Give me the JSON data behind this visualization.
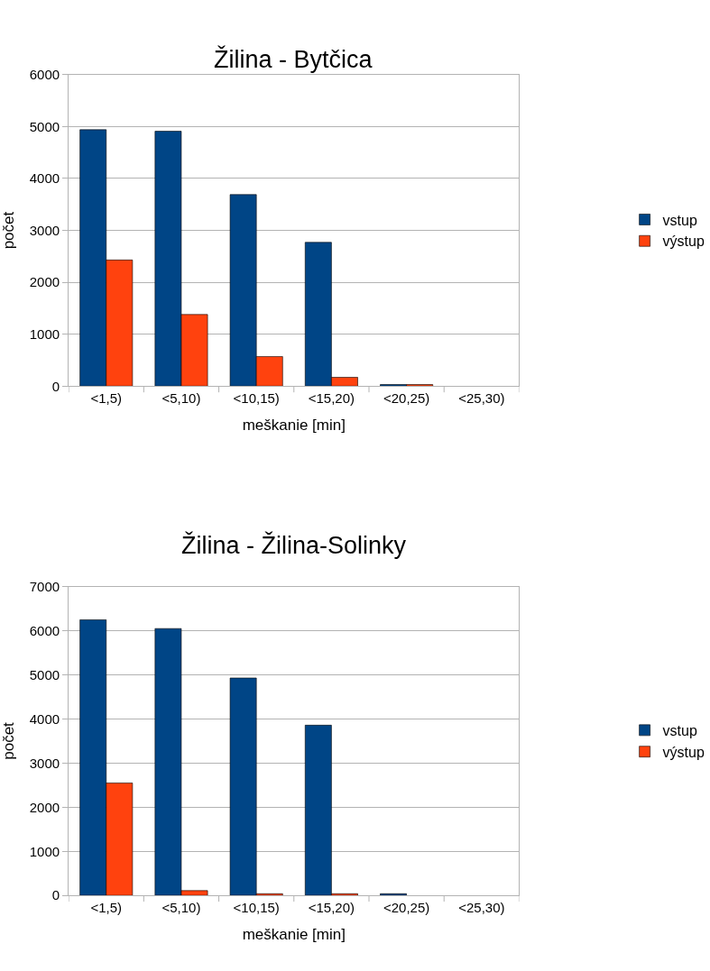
{
  "chart_data": [
    {
      "type": "bar",
      "title": "Žilina - Bytčica",
      "xlabel": "meškanie [min]",
      "ylabel": "počet",
      "categories": [
        "<1,5)",
        "<5,10)",
        "<10,15)",
        "<15,20)",
        "<20,25)",
        "<25,30)"
      ],
      "series": [
        {
          "name": "vstup",
          "color": "#004586",
          "values": [
            4940,
            4910,
            3690,
            2770,
            30,
            0
          ]
        },
        {
          "name": "výstup",
          "color": "#ff420e",
          "values": [
            2430,
            1380,
            570,
            170,
            30,
            0
          ]
        }
      ],
      "ylim": [
        0,
        6000
      ],
      "yticks": [
        0,
        1000,
        2000,
        3000,
        4000,
        5000,
        6000
      ],
      "grid": "y",
      "legend": "right"
    },
    {
      "type": "bar",
      "title": "Žilina - Žilina-Solinky",
      "xlabel": "meškanie [min]",
      "ylabel": "počet",
      "categories": [
        "<1,5)",
        "<5,10)",
        "<10,15)",
        "<15,20)",
        "<20,25)",
        "<25,30)"
      ],
      "series": [
        {
          "name": "vstup",
          "color": "#004586",
          "values": [
            6250,
            6050,
            4930,
            3860,
            40,
            0
          ]
        },
        {
          "name": "výstup",
          "color": "#ff420e",
          "values": [
            2550,
            110,
            40,
            40,
            0,
            0
          ]
        }
      ],
      "ylim": [
        0,
        7000
      ],
      "yticks": [
        0,
        1000,
        2000,
        3000,
        4000,
        5000,
        6000,
        7000
      ],
      "grid": "y",
      "legend": "right"
    }
  ]
}
